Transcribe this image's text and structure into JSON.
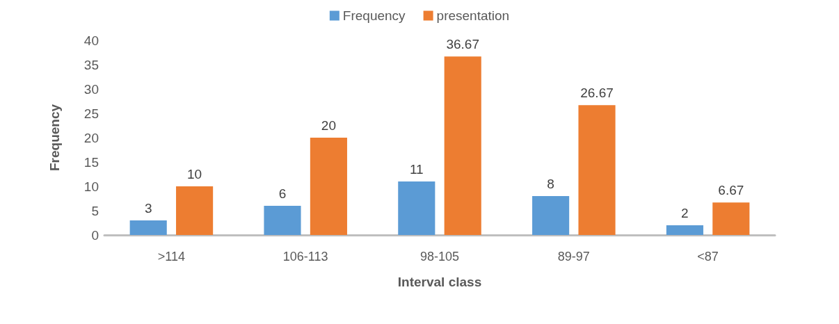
{
  "chart_data": {
    "type": "bar",
    "xlabel": "Interval class",
    "ylabel": "Frequency",
    "categories": [
      ">114",
      "106-113",
      "98-105",
      "89-97",
      "<87"
    ],
    "series": [
      {
        "name": "Frequency",
        "color": "#5b9bd5",
        "values": [
          3,
          6,
          11,
          8,
          2
        ]
      },
      {
        "name": "presentation",
        "color": "#ed7d31",
        "values": [
          10,
          20,
          36.67,
          26.67,
          6.67
        ]
      }
    ],
    "ylim": [
      0,
      40
    ],
    "yticks": [
      0,
      5,
      10,
      15,
      20,
      25,
      30,
      35,
      40
    ],
    "grid": false,
    "legend": "top",
    "data_labels": true
  }
}
